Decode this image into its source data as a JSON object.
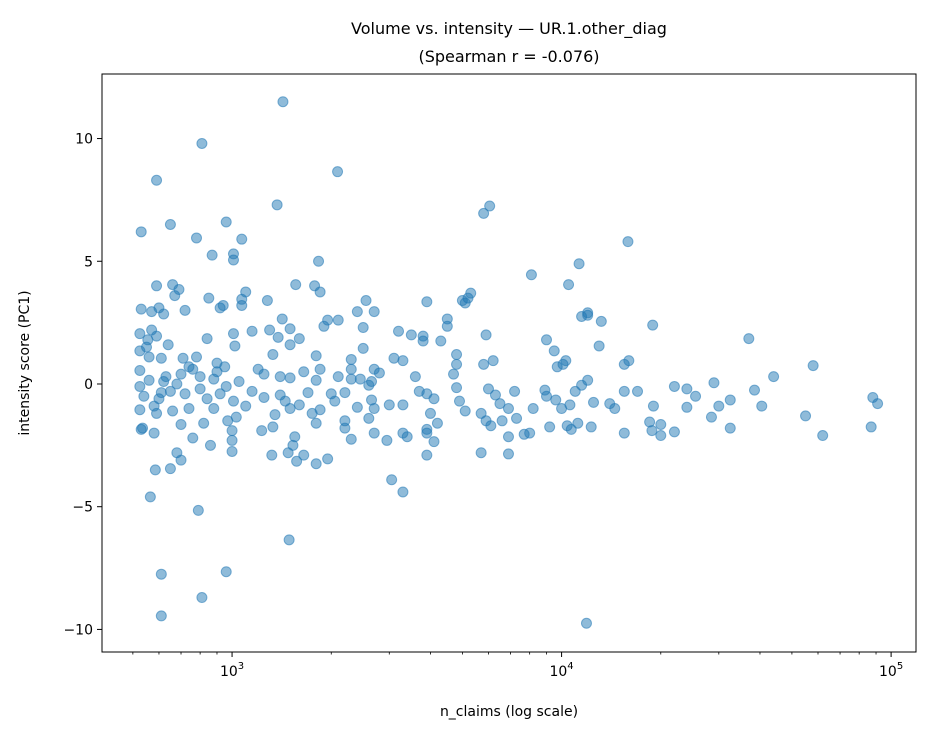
{
  "chart_data": {
    "type": "scatter",
    "title": "Volume vs. intensity — UR.1.other_diag",
    "subtitle": "(Spearman r = -0.076)",
    "xlabel": "n_claims (log scale)",
    "ylabel": "intensity score (PC1)",
    "xscale": "log",
    "xlim": [
      403,
      119000
    ],
    "ylim": [
      -10.92,
      12.63
    ],
    "xticks": [
      {
        "value": 1000,
        "label": "10^3"
      },
      {
        "value": 10000,
        "label": "10^4"
      },
      {
        "value": 100000,
        "label": "10^5"
      }
    ],
    "yticks": [
      -10,
      -5,
      0,
      5,
      10
    ],
    "grid": false,
    "marker_color": "#1f77b4",
    "marker_alpha": 0.5,
    "points": [
      [
        1427,
        11.5
      ],
      [
        810,
        9.8
      ],
      [
        590,
        8.3
      ],
      [
        2090,
        8.65
      ],
      [
        1370,
        7.3
      ],
      [
        650,
        6.5
      ],
      [
        5800,
        6.95
      ],
      [
        6050,
        7.25
      ],
      [
        530,
        6.2
      ],
      [
        960,
        6.6
      ],
      [
        780,
        5.95
      ],
      [
        1070,
        5.9
      ],
      [
        870,
        5.25
      ],
      [
        1010,
        5.3
      ],
      [
        1010,
        5.05
      ],
      [
        1830,
        5.0
      ],
      [
        15900,
        5.8
      ],
      [
        11300,
        4.9
      ],
      [
        8100,
        4.45
      ],
      [
        10500,
        4.05
      ],
      [
        590,
        4.0
      ],
      [
        660,
        4.05
      ],
      [
        690,
        3.85
      ],
      [
        1560,
        4.05
      ],
      [
        1780,
        4.0
      ],
      [
        12000,
        2.9
      ],
      [
        13200,
        2.55
      ],
      [
        18900,
        2.4
      ],
      [
        37000,
        1.85
      ],
      [
        58000,
        0.75
      ],
      [
        44000,
        0.3
      ],
      [
        88000,
        -0.55
      ],
      [
        91000,
        -0.8
      ],
      [
        87000,
        -1.75
      ],
      [
        62000,
        -2.1
      ],
      [
        55000,
        -1.3
      ],
      [
        40500,
        -0.9
      ],
      [
        38500,
        -0.25
      ],
      [
        32500,
        -0.65
      ],
      [
        29000,
        0.05
      ],
      [
        30000,
        -0.9
      ],
      [
        32500,
        -1.8
      ],
      [
        28500,
        -1.35
      ],
      [
        25500,
        -0.5
      ],
      [
        24000,
        -0.2
      ],
      [
        24000,
        -0.95
      ],
      [
        22000,
        -0.1
      ],
      [
        22000,
        -1.95
      ],
      [
        20000,
        -1.65
      ],
      [
        20000,
        -2.1
      ],
      [
        19000,
        -0.9
      ],
      [
        18500,
        -1.55
      ],
      [
        18800,
        -1.9
      ],
      [
        16000,
        0.95
      ],
      [
        15500,
        0.8
      ],
      [
        15500,
        -0.3
      ],
      [
        17000,
        -0.3
      ],
      [
        15500,
        -2.0
      ],
      [
        14000,
        -0.8
      ],
      [
        14500,
        -1.0
      ],
      [
        13000,
        1.55
      ],
      [
        12500,
        -0.75
      ],
      [
        11500,
        -0.05
      ],
      [
        12000,
        0.15
      ],
      [
        12000,
        2.8
      ],
      [
        11500,
        2.75
      ],
      [
        10300,
        0.95
      ],
      [
        10100,
        0.8
      ],
      [
        9700,
        0.7
      ],
      [
        9500,
        1.35
      ],
      [
        9000,
        1.8
      ],
      [
        8900,
        -0.25
      ],
      [
        9000,
        -0.5
      ],
      [
        9600,
        -0.65
      ],
      [
        9200,
        -1.75
      ],
      [
        10400,
        -1.7
      ],
      [
        10700,
        -1.85
      ],
      [
        11200,
        -1.6
      ],
      [
        12300,
        -1.75
      ],
      [
        11000,
        -0.3
      ],
      [
        10000,
        -1.0
      ],
      [
        10600,
        -0.85
      ],
      [
        11900,
        -9.75
      ],
      [
        8200,
        -1.0
      ],
      [
        8000,
        -2.0
      ],
      [
        7700,
        -2.05
      ],
      [
        7200,
        -0.3
      ],
      [
        7300,
        -1.4
      ],
      [
        6900,
        -1.0
      ],
      [
        6900,
        -2.15
      ],
      [
        6900,
        -2.85
      ],
      [
        6300,
        -0.45
      ],
      [
        6000,
        -0.2
      ],
      [
        6200,
        0.95
      ],
      [
        5800,
        0.8
      ],
      [
        5900,
        2.0
      ],
      [
        5700,
        -1.2
      ],
      [
        5900,
        -1.5
      ],
      [
        6100,
        -1.7
      ],
      [
        5700,
        -2.8
      ],
      [
        6600,
        -1.5
      ],
      [
        6500,
        -0.8
      ],
      [
        5300,
        3.7
      ],
      [
        5000,
        3.4
      ],
      [
        5100,
        3.3
      ],
      [
        5200,
        3.5
      ],
      [
        4800,
        1.2
      ],
      [
        4800,
        0.8
      ],
      [
        4800,
        -0.15
      ],
      [
        4700,
        0.4
      ],
      [
        4900,
        -0.7
      ],
      [
        5100,
        -1.1
      ],
      [
        4500,
        2.65
      ],
      [
        4500,
        2.35
      ],
      [
        4300,
        1.75
      ],
      [
        4100,
        -0.6
      ],
      [
        4200,
        -1.6
      ],
      [
        4000,
        -1.2
      ],
      [
        3900,
        -0.4
      ],
      [
        3800,
        1.75
      ],
      [
        3800,
        1.95
      ],
      [
        3700,
        -0.3
      ],
      [
        3900,
        -1.85
      ],
      [
        4100,
        -2.35
      ],
      [
        3900,
        -2.9
      ],
      [
        3900,
        -2.0
      ],
      [
        3600,
        0.3
      ],
      [
        3500,
        2.0
      ],
      [
        3900,
        3.35
      ],
      [
        3300,
        -4.4
      ],
      [
        3050,
        -3.9
      ],
      [
        3400,
        -2.15
      ],
      [
        3300,
        -2.0
      ],
      [
        3300,
        -0.85
      ],
      [
        3200,
        2.15
      ],
      [
        3100,
        1.05
      ],
      [
        3300,
        0.95
      ],
      [
        3000,
        -0.85
      ],
      [
        2950,
        -2.3
      ],
      [
        2700,
        -2.0
      ],
      [
        2700,
        2.95
      ],
      [
        2550,
        3.4
      ],
      [
        2500,
        2.3
      ],
      [
        2500,
        1.45
      ],
      [
        2700,
        0.6
      ],
      [
        2800,
        0.45
      ],
      [
        2600,
        -0.05
      ],
      [
        2650,
        0.1
      ],
      [
        2650,
        -0.65
      ],
      [
        2700,
        -1.0
      ],
      [
        2600,
        -1.4
      ],
      [
        2400,
        2.95
      ],
      [
        2300,
        1.0
      ],
      [
        2300,
        0.6
      ],
      [
        2300,
        0.2
      ],
      [
        2200,
        -0.35
      ],
      [
        2400,
        -0.95
      ],
      [
        2200,
        -1.8
      ],
      [
        2300,
        -2.25
      ],
      [
        2200,
        -1.5
      ],
      [
        2100,
        0.3
      ],
      [
        2050,
        -0.7
      ],
      [
        1950,
        -3.05
      ],
      [
        2100,
        2.6
      ],
      [
        1950,
        2.6
      ],
      [
        1900,
        2.35
      ],
      [
        1850,
        3.75
      ],
      [
        1800,
        1.15
      ],
      [
        1850,
        0.6
      ],
      [
        1800,
        0.15
      ],
      [
        1850,
        -1.05
      ],
      [
        1800,
        -1.6
      ],
      [
        1800,
        -3.25
      ],
      [
        1650,
        -2.9
      ],
      [
        1750,
        -1.2
      ],
      [
        1700,
        -0.35
      ],
      [
        1600,
        1.85
      ],
      [
        1600,
        -0.85
      ],
      [
        1550,
        -2.15
      ],
      [
        1570,
        -3.15
      ],
      [
        1500,
        2.25
      ],
      [
        1500,
        1.6
      ],
      [
        1500,
        0.25
      ],
      [
        1500,
        -1.0
      ],
      [
        1480,
        -2.8
      ],
      [
        1530,
        -2.5
      ],
      [
        1490,
        -6.35
      ],
      [
        1400,
        0.3
      ],
      [
        1400,
        -0.45
      ],
      [
        1350,
        -1.25
      ],
      [
        1420,
        2.65
      ],
      [
        1380,
        1.9
      ],
      [
        1330,
        1.2
      ],
      [
        1300,
        2.2
      ],
      [
        1280,
        3.4
      ],
      [
        1330,
        -1.75
      ],
      [
        1320,
        -2.9
      ],
      [
        1230,
        -1.9
      ],
      [
        1250,
        -0.55
      ],
      [
        1200,
        0.6
      ],
      [
        1150,
        2.15
      ],
      [
        1100,
        3.75
      ],
      [
        1070,
        3.2
      ],
      [
        1070,
        3.45
      ],
      [
        1050,
        0.1
      ],
      [
        1030,
        -1.35
      ],
      [
        1000,
        -2.75
      ],
      [
        1000,
        -2.3
      ],
      [
        1000,
        -1.9
      ],
      [
        1020,
        1.55
      ],
      [
        1010,
        2.05
      ],
      [
        1010,
        -0.7
      ],
      [
        960,
        -0.1
      ],
      [
        970,
        -1.5
      ],
      [
        960,
        -7.65
      ],
      [
        940,
        3.2
      ],
      [
        920,
        3.1
      ],
      [
        900,
        0.85
      ],
      [
        900,
        0.5
      ],
      [
        880,
        -1.0
      ],
      [
        860,
        -2.5
      ],
      [
        850,
        3.5
      ],
      [
        840,
        1.85
      ],
      [
        820,
        -1.6
      ],
      [
        810,
        -8.7
      ],
      [
        790,
        -5.15
      ],
      [
        800,
        -0.2
      ],
      [
        780,
        1.1
      ],
      [
        760,
        -2.2
      ],
      [
        740,
        0.7
      ],
      [
        740,
        -1.0
      ],
      [
        720,
        3.0
      ],
      [
        710,
        1.05
      ],
      [
        700,
        0.4
      ],
      [
        700,
        -1.65
      ],
      [
        700,
        -3.1
      ],
      [
        680,
        -2.8
      ],
      [
        670,
        3.6
      ],
      [
        660,
        -1.1
      ],
      [
        650,
        -3.45
      ],
      [
        640,
        1.6
      ],
      [
        630,
        0.3
      ],
      [
        620,
        2.85
      ],
      [
        610,
        1.05
      ],
      [
        610,
        -0.35
      ],
      [
        610,
        -7.75
      ],
      [
        610,
        -9.45
      ],
      [
        600,
        3.1
      ],
      [
        590,
        1.95
      ],
      [
        590,
        -1.2
      ],
      [
        585,
        -3.5
      ],
      [
        580,
        -2.0
      ],
      [
        570,
        2.95
      ],
      [
        570,
        2.2
      ],
      [
        565,
        -4.6
      ],
      [
        560,
        1.1
      ],
      [
        555,
        1.8
      ],
      [
        550,
        1.5
      ],
      [
        540,
        -0.5
      ],
      [
        535,
        -1.8
      ],
      [
        530,
        3.05
      ],
      [
        525,
        2.05
      ],
      [
        525,
        1.35
      ],
      [
        525,
        0.55
      ],
      [
        525,
        -0.1
      ],
      [
        525,
        -1.05
      ],
      [
        530,
        -1.85
      ],
      [
        560,
        0.15
      ],
      [
        580,
        -0.9
      ],
      [
        600,
        -0.6
      ],
      [
        620,
        0.1
      ],
      [
        650,
        -0.3
      ],
      [
        680,
        0.0
      ],
      [
        720,
        -0.4
      ],
      [
        760,
        0.6
      ],
      [
        800,
        0.3
      ],
      [
        840,
        -0.6
      ],
      [
        880,
        0.2
      ],
      [
        920,
        -0.4
      ],
      [
        950,
        0.7
      ],
      [
        1100,
        -0.9
      ],
      [
        1150,
        -0.3
      ],
      [
        1250,
        0.4
      ],
      [
        1450,
        -0.7
      ],
      [
        1650,
        0.5
      ],
      [
        2000,
        -0.4
      ],
      [
        2450,
        0.2
      ]
    ]
  }
}
